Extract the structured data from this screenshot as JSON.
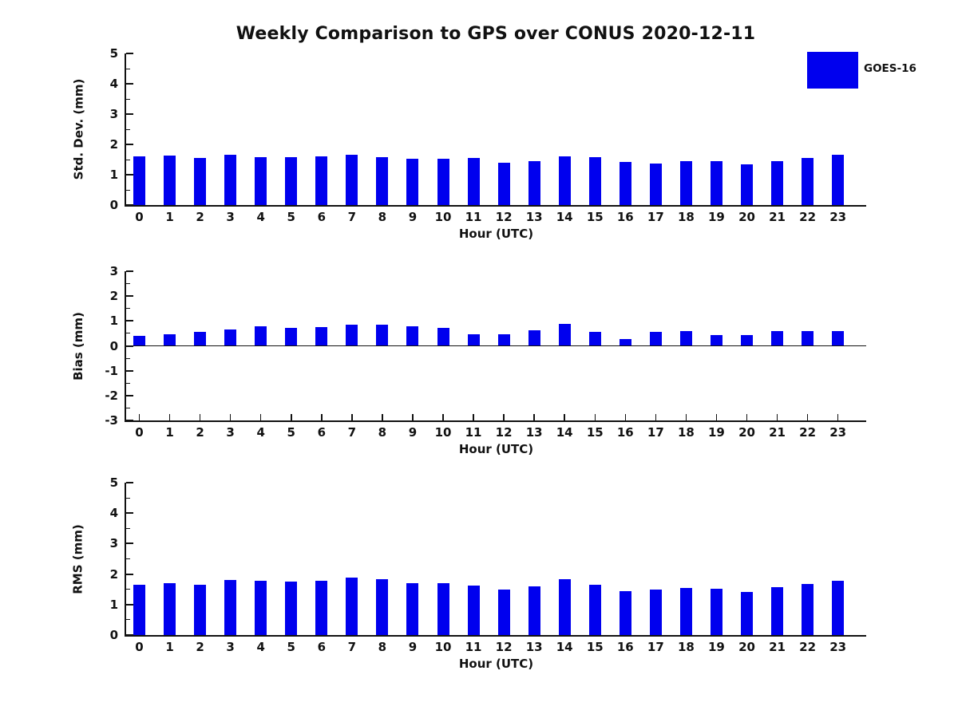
{
  "title": "Weekly Comparison to GPS over CONUS 2020-12-11",
  "legend": {
    "label": "GOES-16",
    "color": "#0000ee"
  },
  "chart_data": [
    {
      "type": "bar",
      "series_name": "GOES-16",
      "ylabel": "Std. Dev. (mm)",
      "xlabel": "Hour (UTC)",
      "categories": [
        "0",
        "1",
        "2",
        "3",
        "4",
        "5",
        "6",
        "7",
        "8",
        "9",
        "10",
        "11",
        "12",
        "13",
        "14",
        "15",
        "16",
        "17",
        "18",
        "19",
        "20",
        "21",
        "22",
        "23"
      ],
      "values": [
        1.61,
        1.64,
        1.55,
        1.67,
        1.59,
        1.59,
        1.61,
        1.67,
        1.59,
        1.52,
        1.52,
        1.55,
        1.4,
        1.46,
        1.6,
        1.57,
        1.41,
        1.38,
        1.44,
        1.46,
        1.35,
        1.45,
        1.56,
        1.65
      ],
      "ylim": [
        0,
        5
      ],
      "yticks": [
        0,
        1,
        2,
        3,
        4,
        5
      ],
      "bar_color": "#0000ee",
      "grid": false,
      "legend_position": "figure-top-right"
    },
    {
      "type": "bar",
      "series_name": "GOES-16",
      "ylabel": "Bias (mm)",
      "xlabel": "Hour (UTC)",
      "categories": [
        "0",
        "1",
        "2",
        "3",
        "4",
        "5",
        "6",
        "7",
        "8",
        "9",
        "10",
        "11",
        "12",
        "13",
        "14",
        "15",
        "16",
        "17",
        "18",
        "19",
        "20",
        "21",
        "22",
        "23"
      ],
      "values": [
        0.4,
        0.47,
        0.57,
        0.66,
        0.79,
        0.72,
        0.76,
        0.86,
        0.84,
        0.79,
        0.73,
        0.45,
        0.48,
        0.63,
        0.88,
        0.55,
        0.28,
        0.55,
        0.58,
        0.43,
        0.43,
        0.58,
        0.6,
        0.6
      ],
      "ylim": [
        -3,
        3
      ],
      "yticks": [
        -3,
        -2,
        -1,
        0,
        1,
        2,
        3
      ],
      "bar_color": "#0000ee",
      "grid": false,
      "legend_position": "none"
    },
    {
      "type": "bar",
      "series_name": "GOES-16",
      "ylabel": "RMS (mm)",
      "xlabel": "Hour (UTC)",
      "categories": [
        "0",
        "1",
        "2",
        "3",
        "4",
        "5",
        "6",
        "7",
        "8",
        "9",
        "10",
        "11",
        "12",
        "13",
        "14",
        "15",
        "16",
        "17",
        "18",
        "19",
        "20",
        "21",
        "22",
        "23"
      ],
      "values": [
        1.66,
        1.71,
        1.65,
        1.8,
        1.77,
        1.75,
        1.78,
        1.88,
        1.82,
        1.71,
        1.69,
        1.61,
        1.48,
        1.6,
        1.82,
        1.66,
        1.44,
        1.49,
        1.55,
        1.52,
        1.42,
        1.56,
        1.67,
        1.77
      ],
      "ylim": [
        0,
        5
      ],
      "yticks": [
        0,
        1,
        2,
        3,
        4,
        5
      ],
      "bar_color": "#0000ee",
      "grid": false,
      "legend_position": "none"
    }
  ]
}
